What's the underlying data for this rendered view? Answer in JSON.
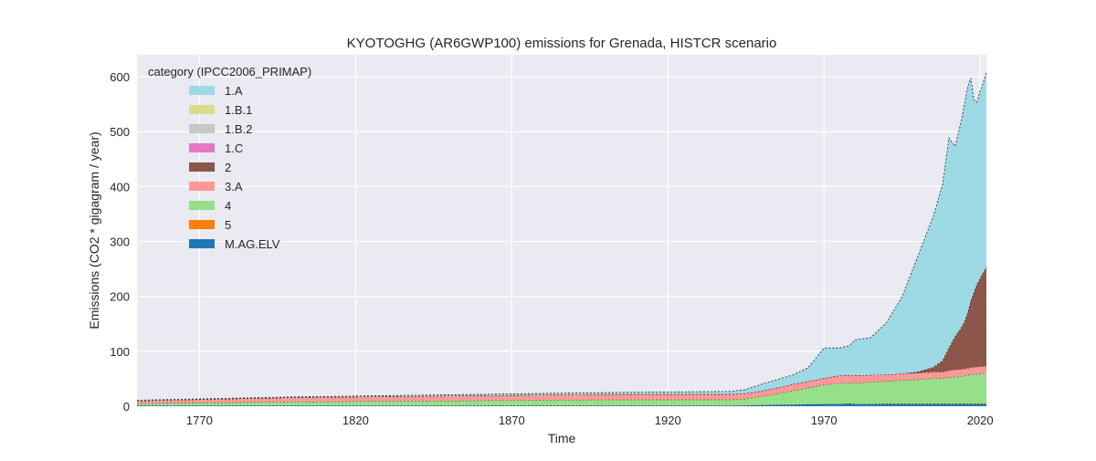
{
  "chart_data": {
    "type": "area",
    "stacked": true,
    "title": "KYOTOGHG (AR6GWP100) emissions for Grenada, HISTCR scenario",
    "xlabel": "Time",
    "ylabel": "Emissions (CO2 * gigagram / year)",
    "xlim": [
      1750,
      2022
    ],
    "ylim": [
      0,
      640
    ],
    "x_ticks": [
      1770,
      1820,
      1870,
      1920,
      1970,
      2020
    ],
    "y_ticks": [
      0,
      100,
      200,
      300,
      400,
      500,
      600
    ],
    "grid": true,
    "legend_title": "category (IPCC2006_PRIMAP)",
    "legend_position": "top-left",
    "x": [
      1750,
      1800,
      1850,
      1900,
      1940,
      1945,
      1950,
      1955,
      1960,
      1965,
      1970,
      1975,
      1978,
      1980,
      1985,
      1990,
      1995,
      2000,
      2005,
      2008,
      2010,
      2012,
      2014,
      2015,
      2016,
      2017,
      2018,
      2019,
      2020,
      2021,
      2022
    ],
    "series": [
      {
        "name": "M.AG.ELV",
        "color": "#1f77b4",
        "values": [
          1,
          1,
          1,
          1,
          1,
          1.5,
          2,
          2.5,
          3,
          3.5,
          4,
          4,
          5,
          4,
          4,
          4,
          4,
          4,
          4,
          4,
          4,
          4,
          4,
          4,
          4,
          4,
          4,
          4,
          4,
          4,
          4
        ]
      },
      {
        "name": "5",
        "color": "#ff7f0e",
        "values": [
          0,
          0,
          0,
          0,
          0,
          0,
          0,
          0,
          0,
          0,
          0,
          0,
          0,
          0,
          0,
          0.5,
          0.5,
          0.5,
          0.5,
          0.5,
          0.5,
          0.5,
          0.5,
          0.5,
          0.5,
          0.5,
          0.5,
          0.5,
          0.5,
          0.5,
          0.5
        ]
      },
      {
        "name": "4",
        "color": "#98df8a",
        "values": [
          4,
          7,
          9,
          11,
          11,
          12,
          16,
          20,
          25,
          30,
          35,
          38,
          38,
          38,
          40,
          41,
          43,
          44,
          46,
          46,
          48,
          49,
          50,
          51,
          52,
          53,
          54,
          54,
          55,
          55,
          55
        ]
      },
      {
        "name": "3.A",
        "color": "#ff9896",
        "values": [
          5,
          8,
          9,
          10,
          10,
          10,
          10,
          11,
          12,
          12,
          12,
          14,
          14,
          14,
          13,
          12,
          12,
          12,
          12,
          12,
          13,
          13,
          13,
          13,
          13,
          13,
          13,
          13,
          13,
          13,
          13
        ]
      },
      {
        "name": "2",
        "color": "#8c564b",
        "values": [
          0,
          0,
          0,
          0,
          0,
          0,
          0,
          0,
          0,
          0,
          0,
          0,
          0,
          0,
          0,
          0,
          0,
          2,
          8,
          20,
          40,
          60,
          75,
          85,
          100,
          120,
          135,
          150,
          160,
          170,
          180
        ]
      },
      {
        "name": "1.C",
        "color": "#e377c2",
        "values": [
          0,
          0,
          0,
          0,
          0,
          0,
          0,
          0,
          0,
          0,
          0,
          0,
          0,
          0,
          0,
          0,
          0,
          0,
          0,
          0,
          0,
          0,
          0,
          0,
          0,
          0,
          0,
          0,
          0,
          0,
          0
        ]
      },
      {
        "name": "1.B.2",
        "color": "#c7c7c7",
        "values": [
          0,
          0,
          0,
          0,
          0,
          0,
          0,
          0,
          0,
          0,
          0,
          0,
          0,
          0,
          0,
          0,
          0,
          0,
          0,
          0,
          0,
          0,
          0,
          0,
          0,
          0,
          0,
          0,
          0,
          0,
          0
        ]
      },
      {
        "name": "1.B.1",
        "color": "#dbdb8d",
        "values": [
          0,
          0,
          0,
          0,
          0,
          0,
          0,
          0,
          0,
          0,
          0,
          0,
          0,
          0,
          0,
          0,
          0,
          0,
          1,
          2,
          3,
          2,
          3,
          2,
          2,
          2,
          2,
          2,
          2,
          2,
          2
        ]
      },
      {
        "name": "1.A",
        "color": "#9edae5",
        "values": [
          1,
          1,
          2,
          3,
          5,
          7,
          12,
          15,
          17,
          25,
          55,
          50,
          53,
          65,
          68,
          95,
          140,
          210,
          275,
          320,
          380,
          345,
          375,
          395,
          410,
          405,
          350,
          330,
          340,
          345,
          355
        ]
      }
    ],
    "legend_order": [
      "1.A",
      "1.B.1",
      "1.B.2",
      "1.C",
      "2",
      "3.A",
      "4",
      "5",
      "M.AG.ELV"
    ]
  }
}
